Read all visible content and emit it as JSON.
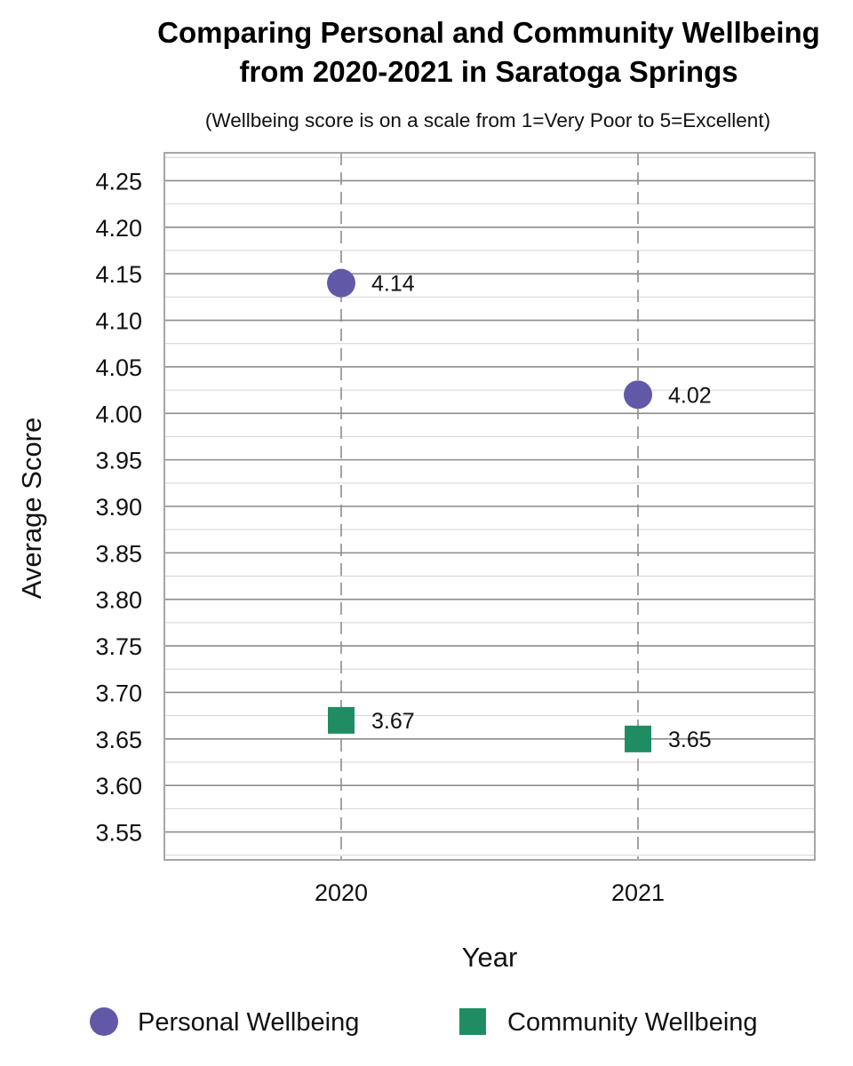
{
  "chart_data": {
    "type": "scatter",
    "title_lines": [
      "Comparing Personal and Community Wellbeing",
      "from 2020-2021 in Saratoga Springs"
    ],
    "subtitle": "(Wellbeing score is on a scale from 1=Very Poor to 5=Excellent)",
    "xlabel": "Year",
    "ylabel": "Average Score",
    "categories": [
      "2020",
      "2021"
    ],
    "ylim": [
      3.52,
      4.28
    ],
    "yticks": [
      "3.55",
      "3.60",
      "3.65",
      "3.70",
      "3.75",
      "3.80",
      "3.85",
      "3.90",
      "3.95",
      "4.00",
      "4.05",
      "4.10",
      "4.15",
      "4.20",
      "4.25"
    ],
    "grid": true,
    "legend_position": "bottom",
    "series": [
      {
        "name": "Personal Wellbeing",
        "marker": "circle",
        "color": "#6159a8",
        "values": [
          4.14,
          4.02
        ],
        "labels": [
          "4.14",
          "4.02"
        ]
      },
      {
        "name": "Community Wellbeing",
        "marker": "square",
        "color": "#1f8c63",
        "values": [
          3.67,
          3.65
        ],
        "labels": [
          "3.67",
          "3.65"
        ]
      }
    ]
  }
}
